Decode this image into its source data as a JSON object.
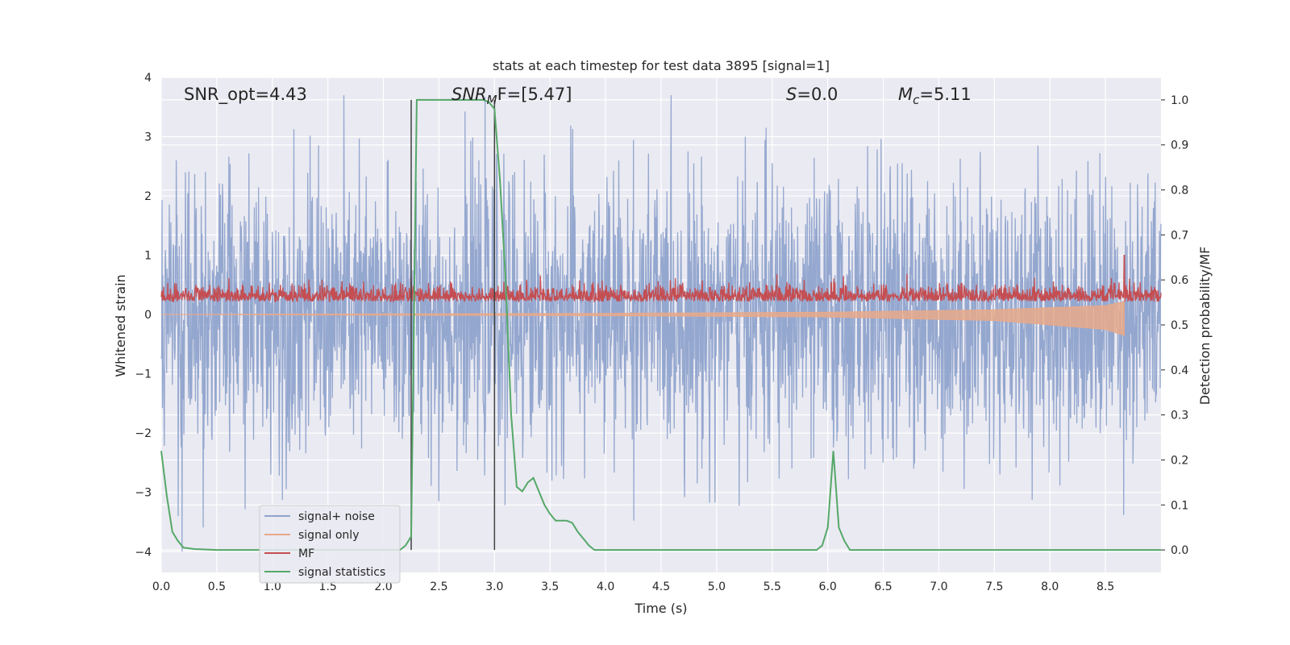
{
  "chart_data": {
    "type": "line",
    "title": "stats at each timestep for test data 3895 [signal=1]",
    "xlabel": "Time (s)",
    "ylabel": "Whitened strain",
    "ylabel_right": "Detection probability/MF",
    "xlim": [
      0.0,
      9.0
    ],
    "ylim": [
      -4.35,
      4.0
    ],
    "ylim_right": [
      -0.05,
      1.05
    ],
    "x_ticks": [
      "0.0",
      "0.5",
      "1.0",
      "1.5",
      "2.0",
      "2.5",
      "3.0",
      "3.5",
      "4.0",
      "4.5",
      "5.0",
      "5.5",
      "6.0",
      "6.5",
      "7.0",
      "7.5",
      "8.0",
      "8.5"
    ],
    "y_ticks": [
      "4",
      "3",
      "2",
      "1",
      "0",
      "−1",
      "−2",
      "−3",
      "−4"
    ],
    "y_right_ticks": [
      "1.0",
      "0.9",
      "0.8",
      "0.7",
      "0.6",
      "0.5",
      "0.4",
      "0.3",
      "0.2",
      "0.1",
      "0.0"
    ],
    "grid": true,
    "legend_position": "lower-left",
    "annotations": {
      "snr_opt": "SNR_opt=4.43",
      "snr_mf_main": "SNR",
      "snr_mf_sub": "M",
      "snr_mf_rest": "F=[5.47]",
      "s_main": "S",
      "s_rest": "=0.0",
      "mc_main": "M",
      "mc_sub": "c",
      "mc_rest": "=5.11"
    },
    "vertical_lines_x": [
      2.25,
      3.0
    ],
    "series": [
      {
        "name": "signal+ noise",
        "color": "#8fa3cc",
        "noise_amplitude_range": [
          -4.0,
          3.7
        ]
      },
      {
        "name": "signal only",
        "color": "#e8a98a",
        "x": [
          0.0,
          2.0,
          4.0,
          6.0,
          7.5,
          8.5,
          8.67
        ],
        "upper": [
          0.0,
          0.01,
          0.02,
          0.04,
          0.08,
          0.15,
          0.22
        ],
        "lower": [
          0.0,
          -0.01,
          -0.02,
          -0.04,
          -0.1,
          -0.25,
          -0.35
        ]
      },
      {
        "name": "MF",
        "color": "#c44e52",
        "range": [
          0.0,
          0.8
        ],
        "peak": {
          "x": 8.67,
          "y": 1.0
        }
      },
      {
        "name": "signal statistics",
        "color": "#55a868",
        "axis": "right",
        "x": [
          0.0,
          0.05,
          0.1,
          0.15,
          0.2,
          0.3,
          0.5,
          1.0,
          1.5,
          2.0,
          2.15,
          2.2,
          2.25,
          2.3,
          2.35,
          2.5,
          2.7,
          2.9,
          2.95,
          3.0,
          3.05,
          3.1,
          3.15,
          3.2,
          3.25,
          3.3,
          3.35,
          3.4,
          3.45,
          3.5,
          3.55,
          3.6,
          3.65,
          3.7,
          3.75,
          3.8,
          3.85,
          3.9,
          3.95,
          4.0,
          4.5,
          5.0,
          5.5,
          5.9,
          5.95,
          6.0,
          6.05,
          6.1,
          6.15,
          6.2,
          6.5,
          7.0,
          8.0,
          9.0
        ],
        "y": [
          0.22,
          0.12,
          0.04,
          0.02,
          0.005,
          0.002,
          0.0,
          0.0,
          0.0,
          0.0,
          0.0,
          0.01,
          0.03,
          1.0,
          1.0,
          1.0,
          1.0,
          1.0,
          0.995,
          0.98,
          0.82,
          0.6,
          0.3,
          0.14,
          0.13,
          0.15,
          0.16,
          0.13,
          0.1,
          0.08,
          0.065,
          0.065,
          0.065,
          0.06,
          0.04,
          0.025,
          0.01,
          0.0,
          0.0,
          0.0,
          0.0,
          0.0,
          0.0,
          0.0,
          0.01,
          0.05,
          0.22,
          0.05,
          0.02,
          0.0,
          0.0,
          0.0,
          0.0,
          0.0
        ]
      }
    ]
  }
}
